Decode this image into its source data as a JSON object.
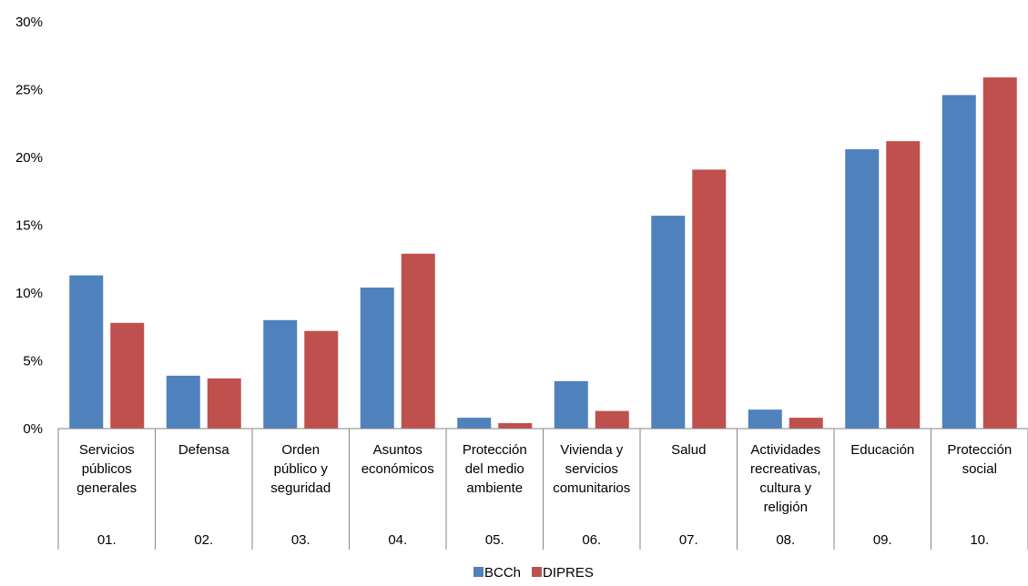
{
  "chart_data": {
    "type": "bar",
    "categories": [
      "Servicios públicos generales",
      "Defensa",
      "Orden público y seguridad",
      "Asuntos económicos",
      "Protección del medio ambiente",
      "Vivienda y servicios comunitarios",
      "Salud",
      "Actividades recreativas, cultura y religión",
      "Educación",
      "Protección social"
    ],
    "category_lines": [
      [
        "Servicios",
        "públicos",
        "generales"
      ],
      [
        "Defensa"
      ],
      [
        "Orden",
        "público y",
        "seguridad"
      ],
      [
        "Asuntos",
        "económicos"
      ],
      [
        "Protección",
        "del medio",
        "ambiente"
      ],
      [
        "Vivienda y",
        "servicios",
        "comunitarios"
      ],
      [
        "Salud"
      ],
      [
        "Actividades",
        "recreativas,",
        "cultura y",
        "religión"
      ],
      [
        "Educación"
      ],
      [
        "Protección",
        "social"
      ]
    ],
    "codes": [
      "01.",
      "02.",
      "03.",
      "04.",
      "05.",
      "06.",
      "07.",
      "08.",
      "09.",
      "10."
    ],
    "series": [
      {
        "name": "BCCh",
        "color": "#4F81BD",
        "values": [
          11.3,
          3.9,
          8.0,
          10.4,
          0.8,
          3.5,
          15.7,
          1.4,
          20.6,
          24.6
        ]
      },
      {
        "name": "DIPRES",
        "color": "#C0504D",
        "values": [
          7.8,
          3.7,
          7.2,
          12.9,
          0.4,
          1.3,
          19.1,
          0.8,
          21.2,
          25.9
        ]
      }
    ],
    "yticks": [
      "0%",
      "5%",
      "10%",
      "15%",
      "20%",
      "25%",
      "30%"
    ],
    "ylim": [
      0,
      30
    ],
    "ytick_step": 5,
    "title": "",
    "xlabel": "",
    "ylabel": "",
    "grid": false,
    "legend_position": "bottom"
  }
}
